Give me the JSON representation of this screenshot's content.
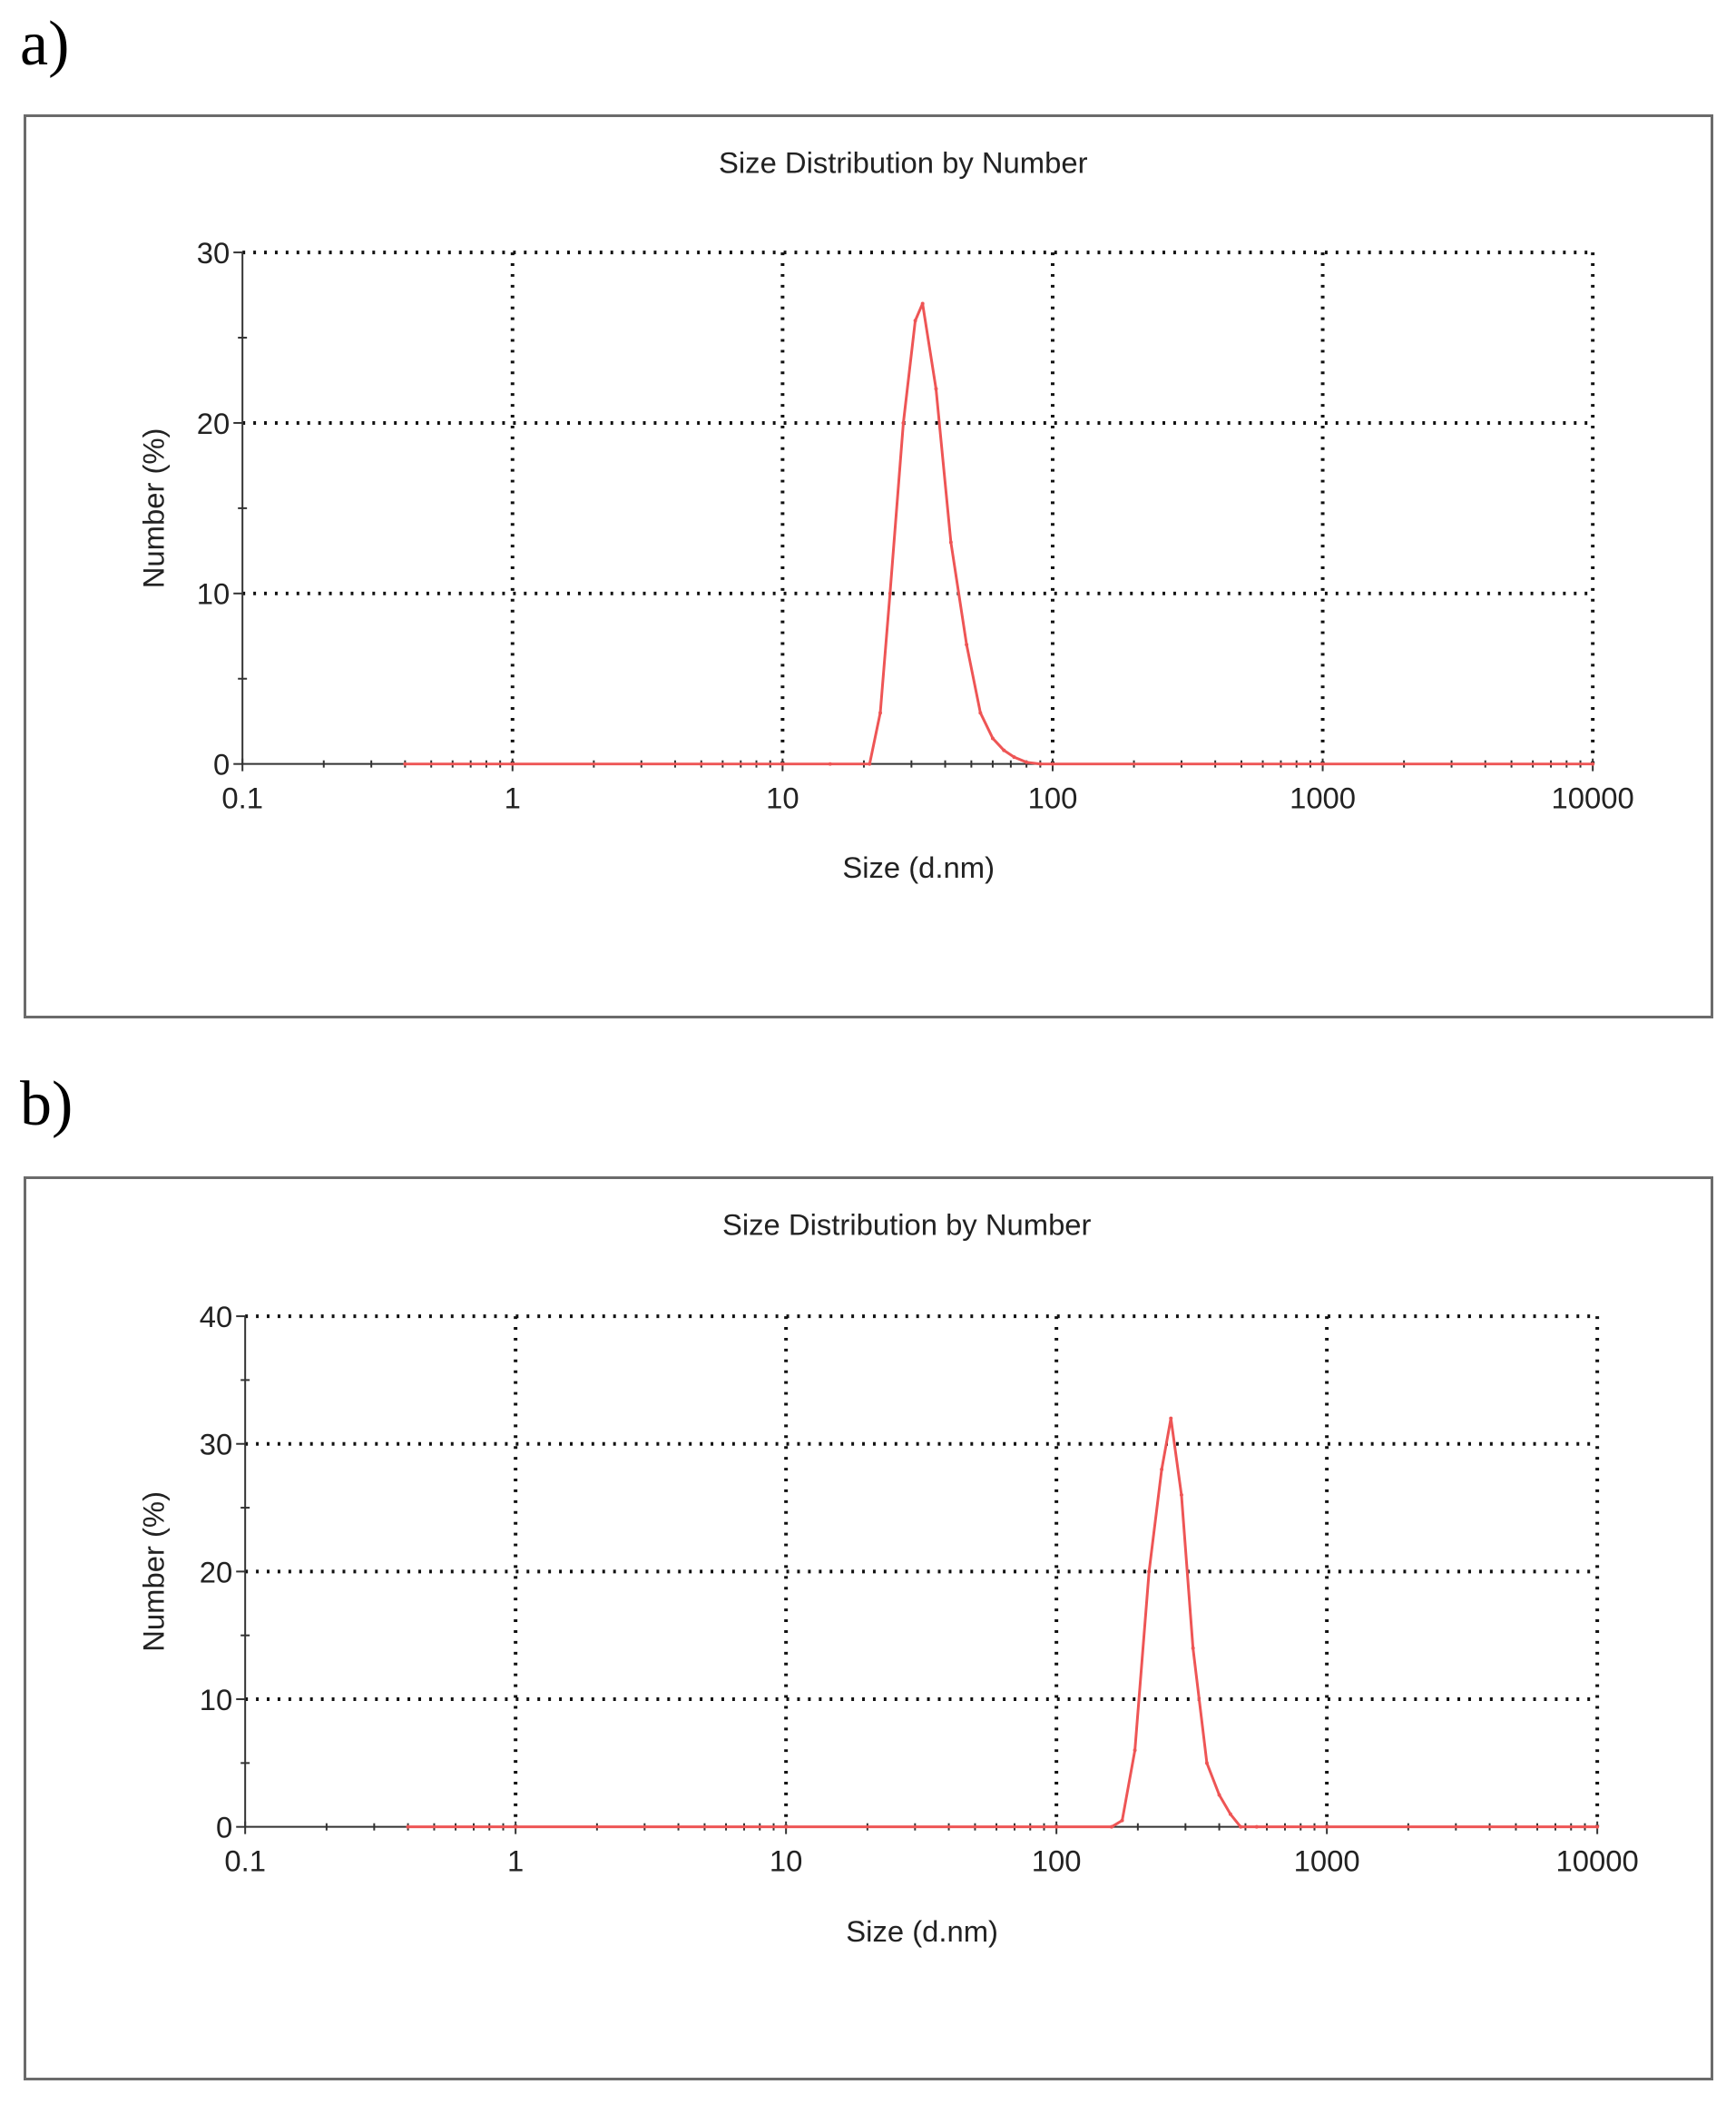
{
  "panels": [
    {
      "label": "a)"
    },
    {
      "label": "b)"
    }
  ],
  "chart_data": [
    {
      "type": "line",
      "title": "Size Distribution by Number",
      "xlabel": "Size (d.nm)",
      "ylabel": "Number (%)",
      "xscale": "log",
      "xlim": [
        0.1,
        10000
      ],
      "ylim": [
        0,
        30
      ],
      "xticks": [
        0.1,
        1,
        10,
        100,
        1000,
        10000
      ],
      "xticklabels": [
        "0.1",
        "1",
        "10",
        "100",
        "1000",
        "10000"
      ],
      "yticks": [
        0,
        10,
        20,
        30
      ],
      "yticklabels": [
        "0",
        "10",
        "20",
        "30"
      ],
      "grid": true,
      "line_color": "#ee5555",
      "series": [
        {
          "x": [
            0.4,
            1,
            5,
            10,
            15,
            21,
            23,
            25,
            28,
            31,
            33,
            37,
            42,
            48,
            54,
            60,
            66,
            72,
            80,
            90,
            100,
            1000,
            10000
          ],
          "y": [
            0,
            0,
            0,
            0,
            0,
            0,
            3,
            10,
            20,
            26,
            27,
            22,
            13,
            7,
            3,
            1.5,
            0.8,
            0.4,
            0.1,
            0,
            0,
            0,
            0
          ]
        }
      ]
    },
    {
      "type": "line",
      "title": "Size Distribution by Number",
      "xlabel": "Size (d.nm)",
      "ylabel": "Number (%)",
      "xscale": "log",
      "xlim": [
        0.1,
        10000
      ],
      "ylim": [
        0,
        40
      ],
      "xticks": [
        0.1,
        1,
        10,
        100,
        1000,
        10000
      ],
      "xticklabels": [
        "0.1",
        "1",
        "10",
        "100",
        "1000",
        "10000"
      ],
      "yticks": [
        0,
        10,
        20,
        30,
        40
      ],
      "yticklabels": [
        "0",
        "10",
        "20",
        "30",
        "40"
      ],
      "grid": true,
      "line_color": "#ee5555",
      "series": [
        {
          "x": [
            0.4,
            1,
            10,
            100,
            160,
            175,
            195,
            220,
            245,
            265,
            290,
            320,
            360,
            400,
            440,
            480,
            550,
            1000,
            10000
          ],
          "y": [
            0,
            0,
            0,
            0,
            0,
            0.5,
            6,
            20,
            28,
            32,
            26,
            14,
            5,
            2.5,
            1,
            0,
            0,
            0,
            0
          ]
        }
      ]
    }
  ]
}
